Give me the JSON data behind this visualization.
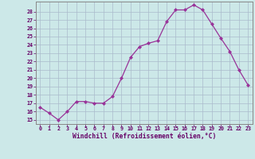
{
  "x": [
    0,
    1,
    2,
    3,
    4,
    5,
    6,
    7,
    8,
    9,
    10,
    11,
    12,
    13,
    14,
    15,
    16,
    17,
    18,
    19,
    20,
    21,
    22,
    23
  ],
  "y": [
    16.5,
    15.8,
    15.0,
    16.0,
    17.2,
    17.2,
    17.0,
    17.0,
    17.8,
    20.0,
    22.5,
    23.8,
    24.2,
    24.5,
    26.8,
    28.2,
    28.2,
    28.8,
    28.2,
    26.5,
    24.8,
    23.2,
    21.0,
    19.2
  ],
  "line_color": "#993399",
  "marker": "D",
  "marker_size": 2.0,
  "bg_color": "#cce8e8",
  "grid_color": "#aabbcc",
  "xlabel": "Windchill (Refroidissement éolien,°C)",
  "ylabel_ticks": [
    15,
    16,
    17,
    18,
    19,
    20,
    21,
    22,
    23,
    24,
    25,
    26,
    27,
    28
  ],
  "xlim": [
    -0.5,
    23.5
  ],
  "ylim": [
    14.5,
    29.2
  ],
  "tick_color": "#660066",
  "axis_color": "#660066",
  "spine_color": "#888888"
}
